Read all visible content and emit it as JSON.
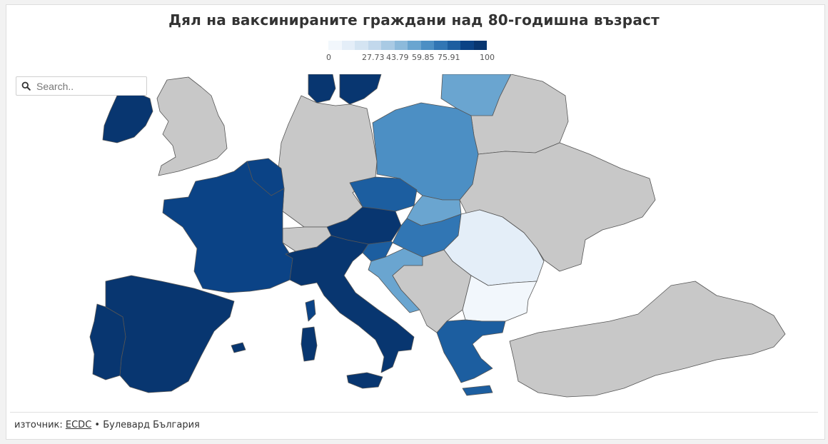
{
  "title": "Дял на ваксинираните граждани над 80-годишна възраст",
  "legend": {
    "labels": [
      "0",
      "27.73",
      "43.79",
      "59.85",
      "75.91",
      "100"
    ],
    "colors": [
      "#f2f7fc",
      "#e4eef8",
      "#d4e4f2",
      "#c2d8ec",
      "#a9cae4",
      "#8cbadb",
      "#6aa5d0",
      "#4c8fc4",
      "#3176b4",
      "#1c5ea0",
      "#0b4386",
      "#083670"
    ]
  },
  "search": {
    "placeholder": "Search.."
  },
  "footer": {
    "prefix": "източник: ",
    "source_link": "ECDC",
    "separator": " • ",
    "publisher": "Булевард България"
  },
  "colors": {
    "no_data": "#c8c8c8",
    "border": "#555555"
  },
  "regions": [
    {
      "name": "Ireland",
      "share": 95
    },
    {
      "name": "United Kingdom",
      "share": null
    },
    {
      "name": "France",
      "share": 85
    },
    {
      "name": "Spain",
      "share": 98
    },
    {
      "name": "Portugal",
      "share": 98
    },
    {
      "name": "Italy",
      "share": 96
    },
    {
      "name": "Germany",
      "share": null
    },
    {
      "name": "Belgium",
      "share": 88
    },
    {
      "name": "Denmark",
      "share": 98
    },
    {
      "name": "Sweden",
      "share": 97
    },
    {
      "name": "Poland",
      "share": 62
    },
    {
      "name": "Czechia",
      "share": 80
    },
    {
      "name": "Austria",
      "share": 95
    },
    {
      "name": "Slovakia",
      "share": 55
    },
    {
      "name": "Hungary",
      "share": 72
    },
    {
      "name": "Slovenia",
      "share": 75
    },
    {
      "name": "Croatia",
      "share": 55
    },
    {
      "name": "Romania",
      "share": 12
    },
    {
      "name": "Bulgaria",
      "share": 8
    },
    {
      "name": "Greece",
      "share": 78
    },
    {
      "name": "Lithuania",
      "share": 55
    },
    {
      "name": "Switzerland",
      "share": null
    },
    {
      "name": "Belarus",
      "share": null
    },
    {
      "name": "Ukraine",
      "share": null
    },
    {
      "name": "Turkey",
      "share": null
    },
    {
      "name": "Serbia",
      "share": null
    }
  ]
}
